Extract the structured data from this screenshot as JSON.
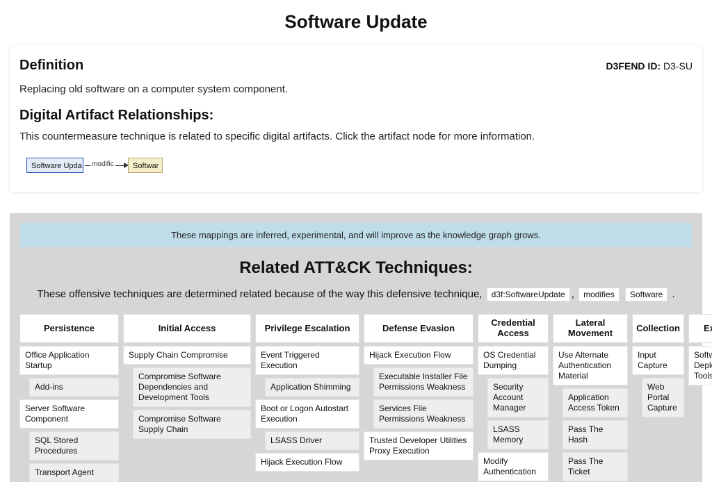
{
  "page": {
    "title": "Software Update"
  },
  "definition": {
    "heading": "Definition",
    "text": "Replacing old software on a computer system component.",
    "id_label": "D3FEND ID:",
    "id_value": "D3-SU"
  },
  "relationships": {
    "heading": "Digital Artifact Relationships:",
    "text": "This countermeasure technique is related to specific digital artifacts. Click the artifact node for more information.",
    "node_a": "Software Upda",
    "edge_label": "modific",
    "node_b": "Softwar"
  },
  "attck": {
    "banner": "These mappings are inferred, experimental, and will improve as the knowledge graph grows.",
    "heading": "Related ATT&CK Techniques:",
    "intro_prefix": "These offensive techniques are determined related because of the way this defensive technique,",
    "chip1": "d3f:SoftwareUpdate",
    "intro_sep": ",",
    "chip2": "modifies",
    "chip3": "Software",
    "intro_suffix": ".",
    "columns": [
      {
        "header": "Persistence",
        "items": [
          {
            "label": "Office Application Startup",
            "sub": false
          },
          {
            "label": "Add-ins",
            "sub": true
          },
          {
            "label": "Server Software Component",
            "sub": false
          },
          {
            "label": "SQL Stored Procedures",
            "sub": true
          },
          {
            "label": "Transport Agent",
            "sub": true
          }
        ]
      },
      {
        "header": "Initial Access",
        "items": [
          {
            "label": "Supply Chain Compromise",
            "sub": false
          },
          {
            "label": "Compromise Software Dependencies and Development Tools",
            "sub": true
          },
          {
            "label": "Compromise Software Supply Chain",
            "sub": true
          }
        ]
      },
      {
        "header": "Privilege Escalation",
        "items": [
          {
            "label": "Event Triggered Execution",
            "sub": false
          },
          {
            "label": "Application Shimming",
            "sub": true
          },
          {
            "label": "Boot or Logon Autostart Execution",
            "sub": false
          },
          {
            "label": "LSASS Driver",
            "sub": true
          },
          {
            "label": "Hijack Execution Flow",
            "sub": false
          }
        ]
      },
      {
        "header": "Defense Evasion",
        "items": [
          {
            "label": "Hijack Execution Flow",
            "sub": false
          },
          {
            "label": "Executable Installer File Permissions Weakness",
            "sub": true
          },
          {
            "label": "Services File Permissions Weakness",
            "sub": true
          },
          {
            "label": "Trusted Developer Utilities Proxy Execution",
            "sub": false
          }
        ]
      },
      {
        "header": "Credential Access",
        "items": [
          {
            "label": "OS Credential Dumping",
            "sub": false
          },
          {
            "label": "Security Account Manager",
            "sub": true
          },
          {
            "label": "LSASS Memory",
            "sub": true
          },
          {
            "label": "Modify Authentication",
            "sub": false
          }
        ]
      },
      {
        "header": "Lateral Movement",
        "items": [
          {
            "label": "Use Alternate Authentication Material",
            "sub": false
          },
          {
            "label": "Application Access Token",
            "sub": true
          },
          {
            "label": "Pass The Hash",
            "sub": true
          },
          {
            "label": "Pass The Ticket",
            "sub": true
          }
        ]
      },
      {
        "header": "Collection",
        "items": [
          {
            "label": "Input Capture",
            "sub": false
          },
          {
            "label": "Web Portal Capture",
            "sub": true
          }
        ]
      },
      {
        "header": "Execution",
        "items": [
          {
            "label": "Software Deployment Tools Execution",
            "sub": false
          }
        ]
      }
    ]
  }
}
